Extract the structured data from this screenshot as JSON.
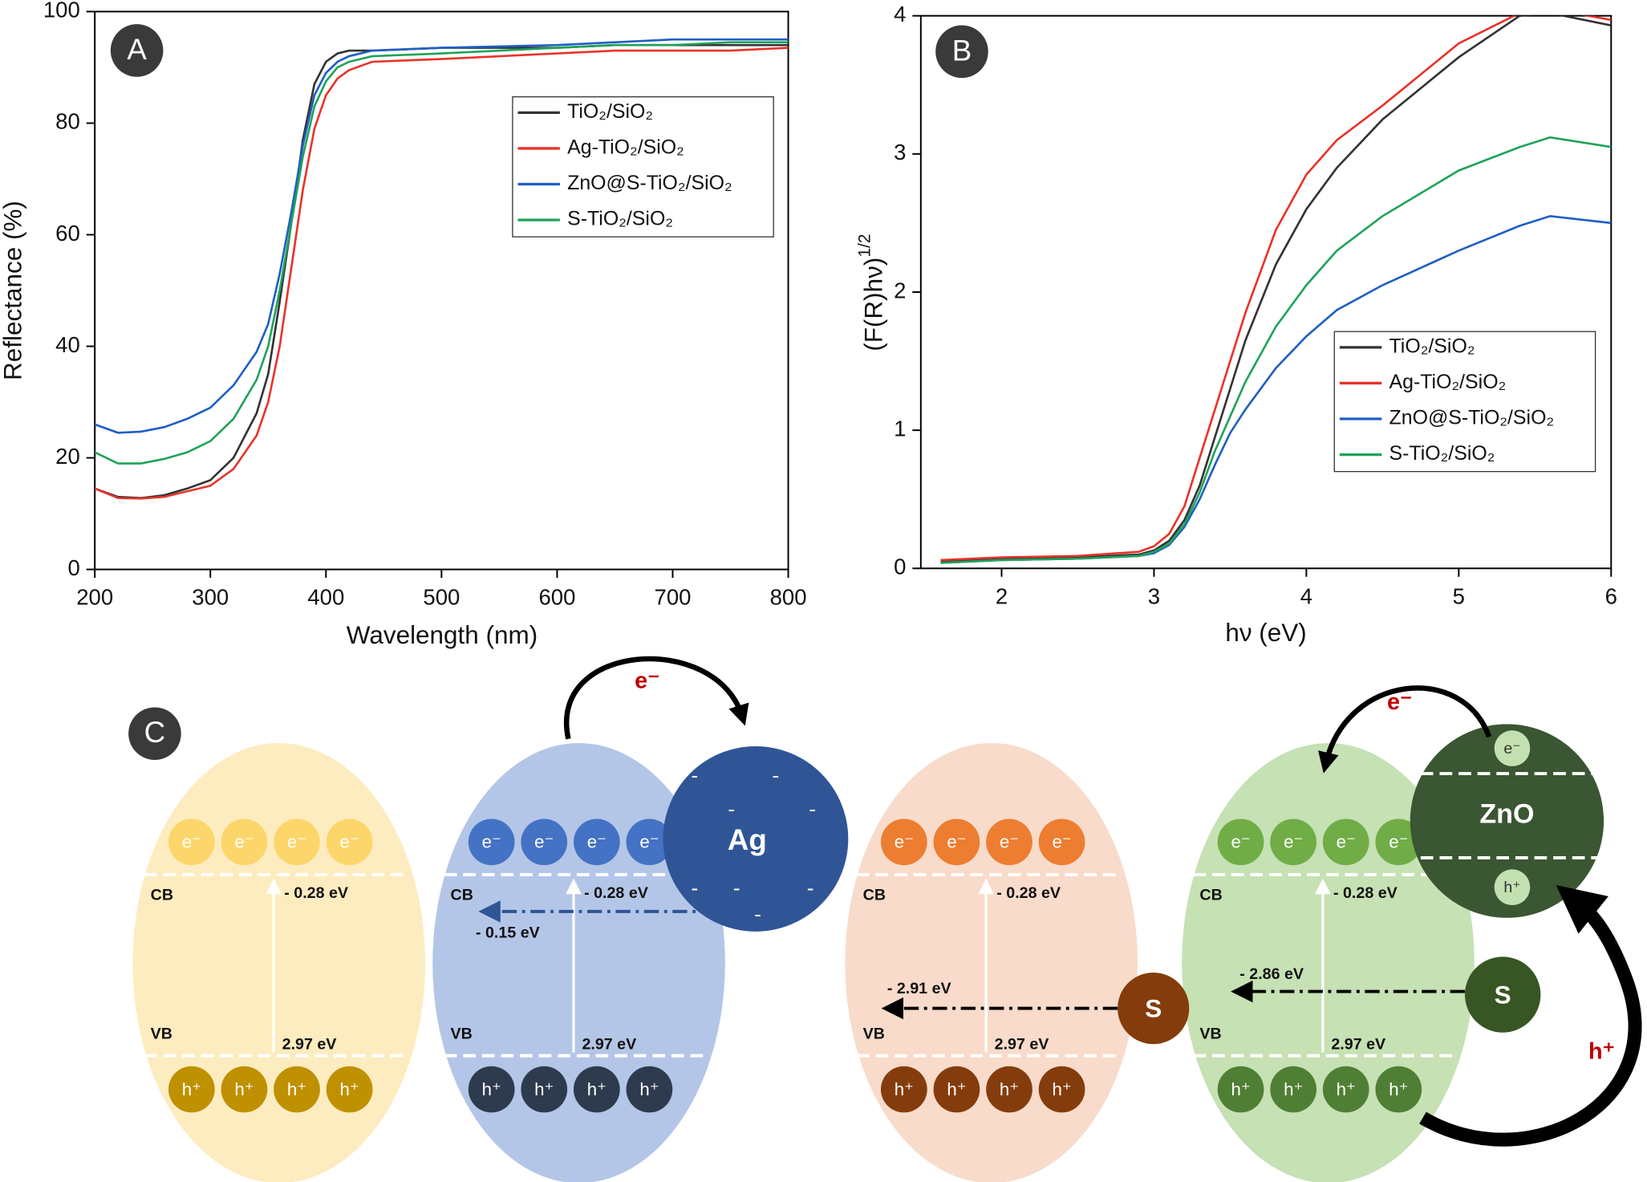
{
  "chart_data": [
    {
      "type": "line",
      "panel_label": "A",
      "xlabel": "Wavelength (nm)",
      "ylabel": "Reflectance (%)",
      "xlim": [
        200,
        800
      ],
      "ylim": [
        0,
        100
      ],
      "xticks": [
        200,
        300,
        400,
        500,
        600,
        700,
        800
      ],
      "yticks": [
        0,
        20,
        40,
        60,
        80,
        100
      ],
      "legend": "upper right",
      "grid": false,
      "x": [
        200,
        220,
        240,
        260,
        280,
        300,
        320,
        340,
        350,
        360,
        370,
        380,
        390,
        400,
        410,
        420,
        440,
        500,
        600,
        650,
        700,
        750,
        800
      ],
      "series": [
        {
          "name": "TiO₂/SiO₂",
          "color": "#333333",
          "values": [
            14.5,
            13,
            12.8,
            13.3,
            14.5,
            16,
            20,
            28,
            35,
            48,
            62,
            77,
            87,
            91,
            92.5,
            93,
            93,
            93.5,
            93.5,
            94,
            94,
            94,
            94
          ]
        },
        {
          "name": "Ag-TiO₂/SiO₂",
          "color": "#e8332a",
          "values": [
            14.5,
            12.8,
            12.7,
            13,
            14,
            15,
            18,
            24,
            30,
            40,
            54,
            68,
            79,
            85,
            88,
            89.5,
            91,
            91.5,
            92.5,
            93,
            93,
            93,
            93.5
          ]
        },
        {
          "name": "ZnO@S-TiO₂/SiO₂",
          "color": "#1f5fc4",
          "values": [
            26,
            24.5,
            24.7,
            25.5,
            27,
            29,
            33,
            39,
            44,
            53,
            64,
            76,
            85,
            89,
            91,
            92,
            93,
            93.5,
            94,
            94.5,
            95,
            95,
            95
          ]
        },
        {
          "name": "S-TiO₂/SiO₂",
          "color": "#1fa35a",
          "values": [
            21,
            19,
            19,
            19.8,
            21,
            23,
            27,
            34,
            40,
            50,
            62,
            74,
            83,
            87.5,
            90,
            91,
            92,
            92.5,
            93.5,
            94,
            94,
            94.5,
            94.5
          ]
        }
      ]
    },
    {
      "type": "line",
      "panel_label": "B",
      "xlabel": "hν (eV)",
      "ylabel": "(F(R)hν)",
      "ylabel_exponent": "1/2",
      "xlim": [
        1.47,
        6
      ],
      "ylim": [
        0,
        4
      ],
      "xticks": [
        2,
        3,
        4,
        5,
        6
      ],
      "yticks": [
        0,
        1,
        2,
        3,
        4
      ],
      "legend": "center right",
      "grid": false,
      "x": [
        1.6,
        2,
        2.5,
        2.9,
        3.0,
        3.1,
        3.2,
        3.3,
        3.4,
        3.5,
        3.6,
        3.8,
        4,
        4.2,
        4.5,
        5,
        5.4,
        5.6,
        6
      ],
      "series": [
        {
          "name": "TiO₂/SiO₂",
          "color": "#333333",
          "values": [
            0.05,
            0.07,
            0.08,
            0.1,
            0.13,
            0.2,
            0.35,
            0.6,
            0.95,
            1.3,
            1.65,
            2.2,
            2.6,
            2.9,
            3.25,
            3.7,
            4.0,
            4.02,
            3.93
          ]
        },
        {
          "name": "Ag-TiO₂/SiO₂",
          "color": "#e8332a",
          "values": [
            0.06,
            0.08,
            0.09,
            0.12,
            0.16,
            0.25,
            0.45,
            0.8,
            1.15,
            1.5,
            1.85,
            2.45,
            2.85,
            3.1,
            3.35,
            3.8,
            4.02,
            4.05,
            3.97
          ]
        },
        {
          "name": "ZnO@S-TiO₂/SiO₂",
          "color": "#1f5fc4",
          "values": [
            0.04,
            0.06,
            0.07,
            0.09,
            0.11,
            0.17,
            0.3,
            0.5,
            0.75,
            0.98,
            1.15,
            1.45,
            1.68,
            1.87,
            2.05,
            2.3,
            2.48,
            2.55,
            2.5
          ]
        },
        {
          "name": "S-TiO₂/SiO₂",
          "color": "#1fa35a",
          "values": [
            0.04,
            0.06,
            0.07,
            0.09,
            0.12,
            0.18,
            0.32,
            0.55,
            0.85,
            1.1,
            1.35,
            1.75,
            2.05,
            2.3,
            2.55,
            2.88,
            3.05,
            3.12,
            3.05
          ]
        }
      ]
    }
  ],
  "diagram": {
    "panel_label": "C",
    "panels": [
      {
        "electrons": [
          "e⁻",
          "e⁻",
          "e⁻",
          "e⁻"
        ],
        "holes": [
          "h⁺",
          "h⁺",
          "h⁺",
          "h⁺"
        ],
        "cb": "CB",
        "vb": "VB",
        "cb_energy": "- 0.28 eV",
        "vb_energy": "2.97 eV"
      },
      {
        "electrons": [
          "e⁻",
          "e⁻",
          "e⁻",
          "e⁻"
        ],
        "holes": [
          "h⁺",
          "h⁺",
          "h⁺",
          "h⁺"
        ],
        "cb": "CB",
        "vb": "VB",
        "cb_energy": "- 0.28 eV",
        "vb_energy": "2.97 eV"
      },
      {
        "electrons": [
          "e⁻",
          "e⁻",
          "e⁻",
          "e⁻"
        ],
        "holes": [
          "h⁺",
          "h⁺",
          "h⁺",
          "h⁺"
        ],
        "cb": "CB",
        "vb": "VB",
        "cb_energy": "- 0.28 eV",
        "vb_energy": "2.97 eV"
      },
      {
        "electrons": [
          "e⁻",
          "e⁻",
          "e⁻",
          "e⁻"
        ],
        "holes": [
          "h⁺",
          "h⁺",
          "h⁺",
          "h⁺"
        ],
        "cb": "CB",
        "vb": "VB",
        "cb_energy": "- 0.28 eV",
        "vb_energy": "2.97 eV"
      }
    ],
    "ag": {
      "label": "Ag",
      "charges": [
        "-",
        "-",
        "-",
        "-",
        "-",
        "-",
        "-",
        "-"
      ],
      "level": "- 0.15 eV",
      "arrow_label": "e⁻"
    },
    "s_dopant": {
      "label": "S",
      "level": "- 2.91 eV"
    },
    "zno": {
      "label": "ZnO",
      "electron": "e⁻",
      "hole": "h⁺",
      "s_label": "S",
      "s_level": "- 2.86 eV",
      "electron_arrow": "e⁻",
      "hole_arrow": "h⁺"
    }
  }
}
